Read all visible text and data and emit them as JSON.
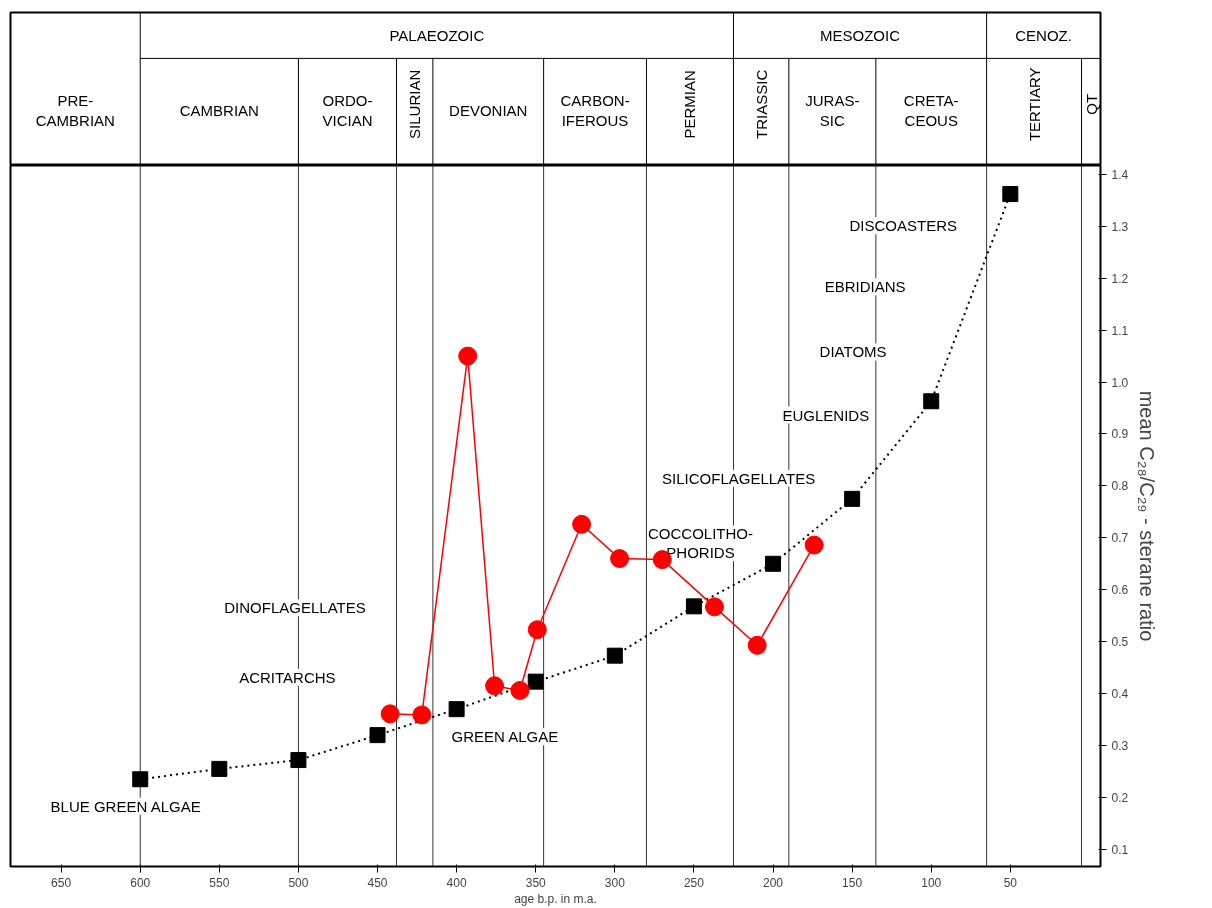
{
  "chart_data": {
    "type": "line",
    "xlabel": "age b.p. in m.a.",
    "ylabel": "mean C₂₈/C₂₉ - sterane ratio",
    "xlim": [
      682,
      -7
    ],
    "xticks": [
      650,
      600,
      550,
      500,
      450,
      400,
      350,
      300,
      250,
      200,
      150,
      100,
      50
    ],
    "ylim": [
      0.067,
      1.417
    ],
    "yticks": [
      0.1,
      0.2,
      0.3,
      0.4,
      0.5,
      0.6,
      0.7,
      0.8,
      0.9,
      {
        "value": 1,
        "label": "1.0"
      },
      1.1,
      1.2,
      1.3,
      1.4
    ],
    "grid": false,
    "series": [
      {
        "color": "#000000",
        "marker": "square",
        "line_style": "dotted",
        "x": [
          600,
          550,
          500,
          450,
          400,
          350,
          300,
          250,
          200,
          150,
          100,
          50
        ],
        "values": [
          0.235,
          0.255,
          0.272,
          0.32,
          0.37,
          0.423,
          0.473,
          0.568,
          0.65,
          0.775,
          0.963,
          1.362
        ]
      },
      {
        "color": "#ff0000",
        "marker": "circle",
        "line_style": "solid",
        "x": [
          442,
          422,
          393,
          376,
          360,
          349,
          321,
          297,
          270,
          237,
          210,
          174
        ],
        "values": [
          0.361,
          0.359,
          1.05,
          0.415,
          0.406,
          0.523,
          0.726,
          0.66,
          0.658,
          0.567,
          0.493,
          0.686
        ]
      }
    ],
    "ref_lines": [
      {
        "axis": "x",
        "value": 600
      },
      {
        "axis": "x",
        "value": 500
      },
      {
        "axis": "x",
        "value": 438
      },
      {
        "axis": "x",
        "value": 415
      },
      {
        "axis": "x",
        "value": 345
      },
      {
        "axis": "x",
        "value": 280
      },
      {
        "axis": "x",
        "value": 225
      },
      {
        "axis": "x",
        "value": 190
      },
      {
        "axis": "x",
        "value": 135
      },
      {
        "axis": "x",
        "value": 65
      },
      {
        "axis": "x",
        "value": 5
      }
    ],
    "annotations": [
      "PRE-\nCAMBRIAN",
      "PALAEOZOIC",
      "MESOZOIC",
      "CENOZ.",
      "CAMBRIAN",
      "ORDO-\nVICIAN",
      "SILURIAN",
      "DEVONIAN",
      "CARBON-\nIFEROUS",
      "PERMIAN",
      "TRIASSIC",
      "JURAS-\nSIC",
      "CRETA-\nCEOUS",
      "TERTIARY",
      "QT",
      "BLUE GREEN ALGAE",
      "GREEN ALGAE",
      "ACRITARCHS",
      "DINOFLAGELLATES",
      "COCCOLITHO-\nPHORIDS",
      "SILICOFLAGELLATES",
      "EUGLENIDS",
      "DIATOMS",
      "EBRIDIANS",
      "DISCOASTERS"
    ]
  }
}
